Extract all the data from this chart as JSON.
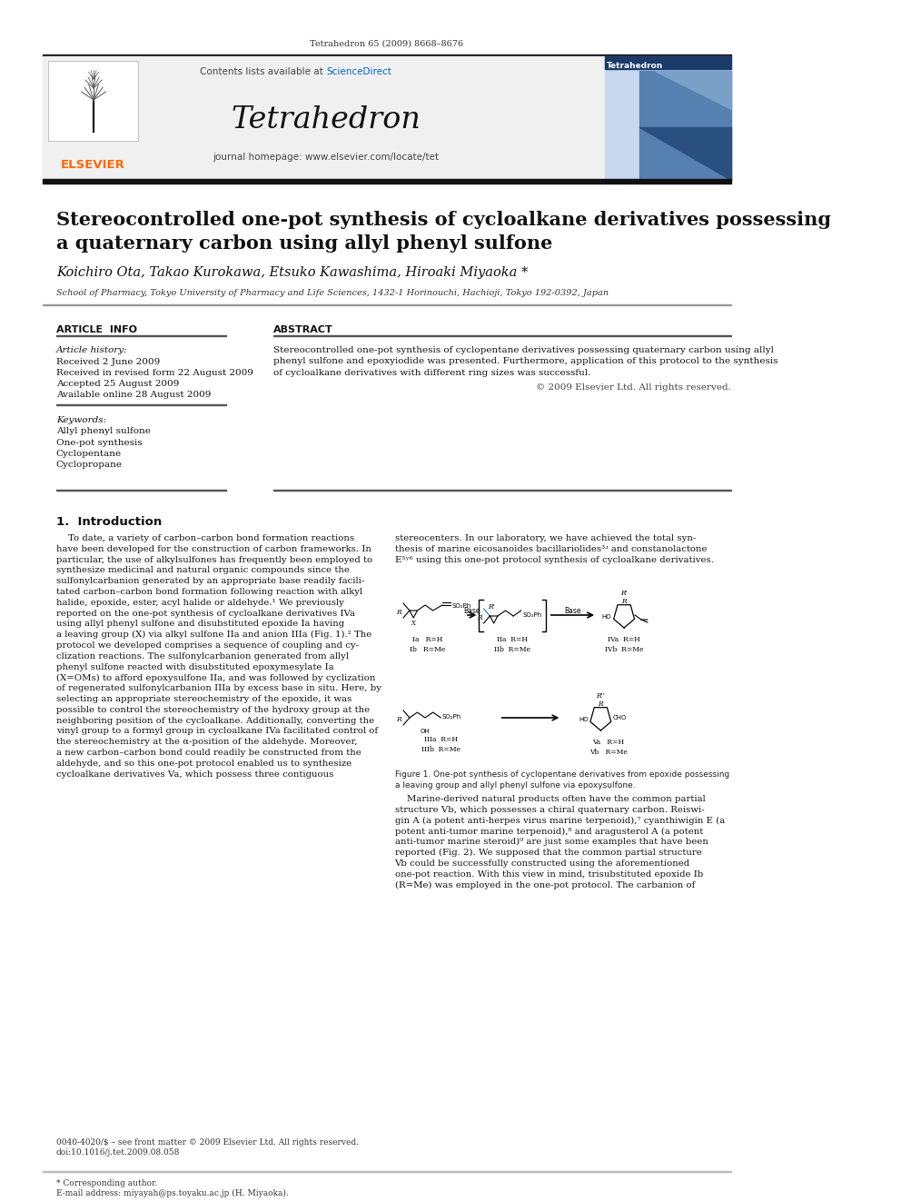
{
  "journal_ref": "Tetrahedron 65 (2009) 8668–8676",
  "journal_name": "Tetrahedron",
  "contents_text": "Contents lists available at ",
  "sciencedirect_text": "ScienceDirect",
  "sciencedirect_color": "#0066cc",
  "journal_homepage": "journal homepage: www.elsevier.com/locate/tet",
  "elsevier_color": "#FF6600",
  "elsevier_text": "ELSEVIER",
  "paper_title_line1": "Stereocontrolled one-pot synthesis of cycloalkane derivatives possessing",
  "paper_title_line2": "a quaternary carbon using allyl phenyl sulfone",
  "authors": "Koichiro Ota, Takao Kurokawa, Etsuko Kawashima, Hiroaki Miyaoka *",
  "affiliation": "School of Pharmacy, Tokyo University of Pharmacy and Life Sciences, 1432-1 Horinouchi, Hachioji, Tokyo 192-0392, Japan",
  "article_info_header": "ARTICLE  INFO",
  "abstract_header": "ABSTRACT",
  "article_history_label": "Article history:",
  "received": "Received 2 June 2009",
  "revised": "Received in revised form 22 August 2009",
  "accepted": "Accepted 25 August 2009",
  "available": "Available online 28 August 2009",
  "keywords_label": "Keywords:",
  "keywords": [
    "Allyl phenyl sulfone",
    "One-pot synthesis",
    "Cyclopentane",
    "Cyclopropane"
  ],
  "abstract_lines": [
    "Stereocontrolled one-pot synthesis of cyclopentane derivatives possessing quaternary carbon using allyl",
    "phenyl sulfone and epoxyiodide was presented. Furthermore, application of this protocol to the synthesis",
    "of cycloalkane derivatives with different ring sizes was successful."
  ],
  "copyright_text": "© 2009 Elsevier Ltd. All rights reserved.",
  "intro_header": "1.  Introduction",
  "intro_col1_lines": [
    "    To date, a variety of carbon–carbon bond formation reactions",
    "have been developed for the construction of carbon frameworks. In",
    "particular, the use of alkylsulfones has frequently been employed to",
    "synthesize medicinal and natural organic compounds since the",
    "sulfonylcarbanion generated by an appropriate base readily facili-",
    "tated carbon–carbon bond formation following reaction with alkyl",
    "halide, epoxide, ester, acyl halide or aldehyde.¹ We previously",
    "reported on the one-pot synthesis of cycloalkane derivatives IVa",
    "using allyl phenyl sulfone and disubstituted epoxide Ia having",
    "a leaving group (X) via alkyl sulfone IIa and anion IIIa (Fig. 1).² The",
    "protocol we developed comprises a sequence of coupling and cy-",
    "clization reactions. The sulfonylcarbanion generated from allyl",
    "phenyl sulfone reacted with disubstituted epoxymesylate Ia",
    "(X=OMs) to afford epoxysulfone IIa, and was followed by cyclization",
    "of regenerated sulfonylcarbanion IIIa by excess base in situ. Here, by",
    "selecting an appropriate stereochemistry of the epoxide, it was",
    "possible to control the stereochemistry of the hydroxy group at the",
    "neighboring position of the cycloalkane. Additionally, converting the",
    "vinyl group to a formyl group in cycloalkane IVa facilitated control of",
    "the stereochemistry at the α-position of the aldehyde. Moreover,",
    "a new carbon–carbon bond could readily be constructed from the",
    "aldehyde, and so this one-pot protocol enabled us to synthesize",
    "cycloalkane derivatives Va, which possess three contiguous"
  ],
  "intro_col2_lines": [
    "stereocenters. In our laboratory, we have achieved the total syn-",
    "thesis of marine eicosanoides bacillariolides³ʴ and constanolactone",
    "E⁵ʸ⁶ using this one-pot protocol synthesis of cycloalkane derivatives."
  ],
  "intro_col2_lines2": [
    "    Marine-derived natural products often have the common partial",
    "structure Vb, which possesses a chiral quaternary carbon. Reiswi-",
    "gin A (a potent anti-herpes virus marine terpenoid),⁷ cyanthiwigin E (a",
    "potent anti-tumor marine terpenoid),⁸ and aragusterol A (a potent",
    "anti-tumor marine steroid)⁹ are just some examples that have been",
    "reported (Fig. 2). We supposed that the common partial structure",
    "Vb could be successfully constructed using the aforementioned",
    "one-pot reaction. With this view in mind, trisubstituted epoxide Ib",
    "(R=Me) was employed in the one-pot protocol. The carbanion of"
  ],
  "figure_caption_lines": [
    "Figure 1. One-pot synthesis of cyclopentane derivatives from epoxide possessing",
    "a leaving group and allyl phenyl sulfone via epoxysulfone."
  ],
  "footer_note1": "* Corresponding author.",
  "footer_note2": "E-mail address: miyayah@ps.toyaku.ac.jp (H. Miyaoka).",
  "footer_issn": "0040-4020/$ – see front matter © 2009 Elsevier Ltd. All rights reserved.",
  "footer_doi": "doi:10.1016/j.tet.2009.08.058",
  "bg_color": "#ffffff",
  "dark_bar_color": "#111111",
  "mid_bar_color": "#444444"
}
